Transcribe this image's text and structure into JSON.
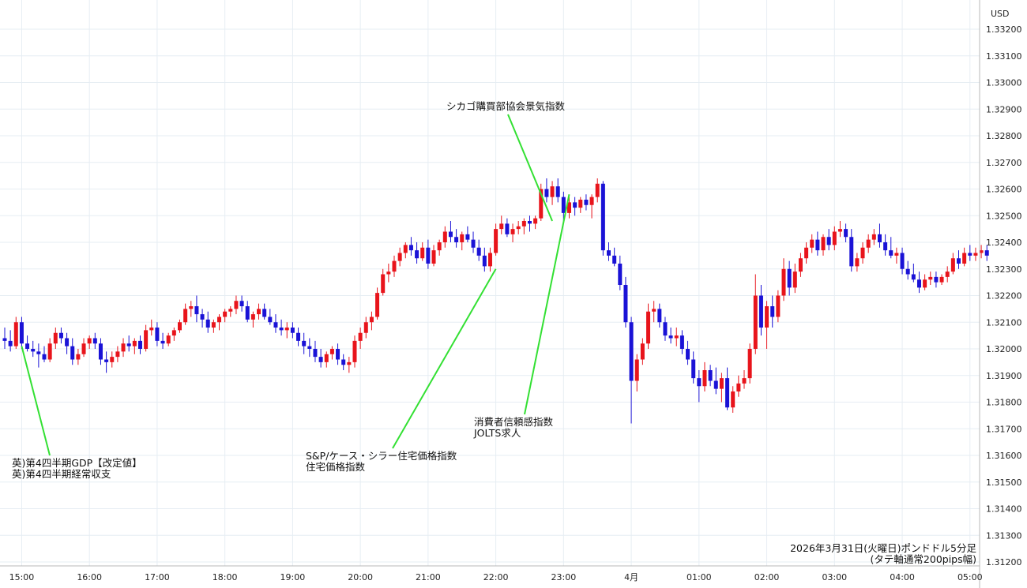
{
  "chart_data": {
    "type": "candlestick",
    "currency_label": "USD",
    "caption": [
      "2026年3月31日(火曜日)ポンドドル5分足",
      "(タテ軸通常200pips幅)"
    ],
    "ylim": [
      1.3119,
      1.3326
    ],
    "y_ticks": [
      "1.31200",
      "1.31300",
      "1.31400",
      "1.31500",
      "1.31600",
      "1.31700",
      "1.31800",
      "1.31900",
      "1.32000",
      "1.32100",
      "1.32200",
      "1.32300",
      "1.32400",
      "1.32500",
      "1.32600",
      "1.32700",
      "1.32800",
      "1.32900",
      "1.33000",
      "1.33100",
      "1.33200"
    ],
    "x_ticks": [
      {
        "label": "15:00",
        "i": 3
      },
      {
        "label": "16:00",
        "i": 15
      },
      {
        "label": "17:00",
        "i": 27
      },
      {
        "label": "18:00",
        "i": 39
      },
      {
        "label": "19:00",
        "i": 51
      },
      {
        "label": "20:00",
        "i": 63
      },
      {
        "label": "21:00",
        "i": 75
      },
      {
        "label": "22:00",
        "i": 87
      },
      {
        "label": "23:00",
        "i": 99
      },
      {
        "label": "4月",
        "i": 111
      },
      {
        "label": "01:00",
        "i": 123
      },
      {
        "label": "02:00",
        "i": 135
      },
      {
        "label": "03:00",
        "i": 147
      },
      {
        "label": "04:00",
        "i": 159
      },
      {
        "label": "05:00",
        "i": 171
      }
    ],
    "up_color": "#e8141b",
    "down_color": "#1a12d6",
    "annotation_color": "#33e033",
    "annotations": [
      {
        "lines": [
          "英)第4四半期GDP【改定値】",
          "英)第4四半期経常収支"
        ],
        "bar": 3,
        "price": 1.3201
      },
      {
        "lines": [
          "S&P/ケース・シラー住宅価格指数",
          "住宅価格指数"
        ],
        "bar": 87,
        "price": 1.323
      },
      {
        "lines": [
          "消費者信頼感指数",
          "JOLTS求人"
        ],
        "bar": 100,
        "price": 1.3258
      },
      {
        "lines": [
          "シカゴ購買部協会景気指数"
        ],
        "bar": 97,
        "price": 1.3248
      }
    ],
    "candles": [
      [
        1.3204,
        1.3208,
        1.32,
        1.3203
      ],
      [
        1.3203,
        1.3207,
        1.3199,
        1.3201
      ],
      [
        1.3201,
        1.3212,
        1.32,
        1.321
      ],
      [
        1.321,
        1.3212,
        1.32,
        1.3202
      ],
      [
        1.3202,
        1.3205,
        1.3199,
        1.32
      ],
      [
        1.32,
        1.3203,
        1.3197,
        1.3199
      ],
      [
        1.3199,
        1.3202,
        1.3193,
        1.3198
      ],
      [
        1.3198,
        1.3201,
        1.3195,
        1.3196
      ],
      [
        1.3196,
        1.3204,
        1.3195,
        1.3202
      ],
      [
        1.3202,
        1.3208,
        1.32,
        1.3206
      ],
      [
        1.3206,
        1.3208,
        1.3202,
        1.3204
      ],
      [
        1.3204,
        1.3206,
        1.3198,
        1.3201
      ],
      [
        1.3201,
        1.3204,
        1.3194,
        1.3196
      ],
      [
        1.3196,
        1.32,
        1.3194,
        1.3198
      ],
      [
        1.3198,
        1.3204,
        1.3197,
        1.3202
      ],
      [
        1.3202,
        1.3205,
        1.32,
        1.3204
      ],
      [
        1.3204,
        1.3206,
        1.32,
        1.3202
      ],
      [
        1.3202,
        1.3204,
        1.3194,
        1.3196
      ],
      [
        1.3196,
        1.3199,
        1.3191,
        1.3195
      ],
      [
        1.3195,
        1.3199,
        1.3193,
        1.3197
      ],
      [
        1.3197,
        1.3201,
        1.3195,
        1.3199
      ],
      [
        1.3199,
        1.3204,
        1.3197,
        1.3202
      ],
      [
        1.3202,
        1.3205,
        1.3199,
        1.3201
      ],
      [
        1.3201,
        1.3204,
        1.3198,
        1.3203
      ],
      [
        1.3203,
        1.3205,
        1.3198,
        1.32
      ],
      [
        1.32,
        1.3209,
        1.3199,
        1.3207
      ],
      [
        1.3207,
        1.3211,
        1.3205,
        1.3208
      ],
      [
        1.3208,
        1.321,
        1.3201,
        1.3203
      ],
      [
        1.3203,
        1.3206,
        1.32,
        1.3202
      ],
      [
        1.3202,
        1.3206,
        1.3201,
        1.3205
      ],
      [
        1.3205,
        1.3208,
        1.3203,
        1.3207
      ],
      [
        1.3207,
        1.3211,
        1.3206,
        1.321
      ],
      [
        1.321,
        1.3217,
        1.3209,
        1.3215
      ],
      [
        1.3215,
        1.3218,
        1.3212,
        1.3216
      ],
      [
        1.3216,
        1.322,
        1.321,
        1.3213
      ],
      [
        1.3213,
        1.3215,
        1.3208,
        1.3211
      ],
      [
        1.3211,
        1.3214,
        1.3206,
        1.3208
      ],
      [
        1.3208,
        1.3211,
        1.3206,
        1.321
      ],
      [
        1.321,
        1.3213,
        1.3207,
        1.3212
      ],
      [
        1.3212,
        1.3215,
        1.321,
        1.3214
      ],
      [
        1.3214,
        1.3216,
        1.3212,
        1.3215
      ],
      [
        1.3215,
        1.322,
        1.3213,
        1.3218
      ],
      [
        1.3218,
        1.322,
        1.3214,
        1.3216
      ],
      [
        1.3216,
        1.3218,
        1.321,
        1.3211
      ],
      [
        1.3211,
        1.3214,
        1.3208,
        1.3213
      ],
      [
        1.3213,
        1.3217,
        1.3211,
        1.3215
      ],
      [
        1.3215,
        1.3217,
        1.3211,
        1.3212
      ],
      [
        1.3212,
        1.3215,
        1.3209,
        1.321
      ],
      [
        1.321,
        1.3213,
        1.3206,
        1.3208
      ],
      [
        1.3208,
        1.3211,
        1.3205,
        1.3207
      ],
      [
        1.3207,
        1.321,
        1.3204,
        1.3208
      ],
      [
        1.3208,
        1.321,
        1.3204,
        1.3206
      ],
      [
        1.3206,
        1.3208,
        1.3201,
        1.3203
      ],
      [
        1.3203,
        1.3206,
        1.3198,
        1.3201
      ],
      [
        1.3201,
        1.3204,
        1.3197,
        1.32
      ],
      [
        1.32,
        1.3203,
        1.3195,
        1.3197
      ],
      [
        1.3197,
        1.32,
        1.3193,
        1.3195
      ],
      [
        1.3195,
        1.3199,
        1.3193,
        1.3198
      ],
      [
        1.3198,
        1.3201,
        1.3196,
        1.32
      ],
      [
        1.32,
        1.3202,
        1.3194,
        1.3196
      ],
      [
        1.3196,
        1.3198,
        1.3192,
        1.3194
      ],
      [
        1.3194,
        1.3197,
        1.3191,
        1.3195
      ],
      [
        1.3195,
        1.3205,
        1.3193,
        1.3203
      ],
      [
        1.3203,
        1.3208,
        1.32,
        1.3206
      ],
      [
        1.3206,
        1.3212,
        1.3204,
        1.321
      ],
      [
        1.321,
        1.3214,
        1.3207,
        1.3212
      ],
      [
        1.3212,
        1.3223,
        1.3211,
        1.3221
      ],
      [
        1.3221,
        1.323,
        1.322,
        1.3228
      ],
      [
        1.3228,
        1.3232,
        1.3225,
        1.3229
      ],
      [
        1.3229,
        1.3235,
        1.3227,
        1.3233
      ],
      [
        1.3233,
        1.3238,
        1.3231,
        1.3236
      ],
      [
        1.3236,
        1.324,
        1.3234,
        1.3239
      ],
      [
        1.3239,
        1.3242,
        1.3235,
        1.3237
      ],
      [
        1.3237,
        1.324,
        1.3232,
        1.3234
      ],
      [
        1.3234,
        1.324,
        1.3233,
        1.3238
      ],
      [
        1.3238,
        1.3241,
        1.323,
        1.3232
      ],
      [
        1.3232,
        1.3239,
        1.3231,
        1.3237
      ],
      [
        1.3237,
        1.3241,
        1.3235,
        1.324
      ],
      [
        1.324,
        1.3246,
        1.3238,
        1.3244
      ],
      [
        1.3244,
        1.3248,
        1.324,
        1.3242
      ],
      [
        1.3242,
        1.3245,
        1.3238,
        1.324
      ],
      [
        1.324,
        1.3244,
        1.3237,
        1.3243
      ],
      [
        1.3243,
        1.3246,
        1.324,
        1.3241
      ],
      [
        1.3241,
        1.3244,
        1.3236,
        1.3238
      ],
      [
        1.3238,
        1.3241,
        1.3233,
        1.3235
      ],
      [
        1.3235,
        1.3238,
        1.3229,
        1.3231
      ],
      [
        1.3231,
        1.3238,
        1.3229,
        1.3236
      ],
      [
        1.3236,
        1.3247,
        1.3235,
        1.3245
      ],
      [
        1.3245,
        1.325,
        1.3243,
        1.3247
      ],
      [
        1.3247,
        1.3249,
        1.3242,
        1.3243
      ],
      [
        1.3243,
        1.3247,
        1.324,
        1.3245
      ],
      [
        1.3245,
        1.3248,
        1.3243,
        1.3246
      ],
      [
        1.3246,
        1.3249,
        1.3243,
        1.3248
      ],
      [
        1.3248,
        1.325,
        1.3244,
        1.3247
      ],
      [
        1.3247,
        1.325,
        1.3245,
        1.3249
      ],
      [
        1.3249,
        1.3262,
        1.3248,
        1.326
      ],
      [
        1.326,
        1.3264,
        1.3255,
        1.3257
      ],
      [
        1.3257,
        1.3263,
        1.3254,
        1.3261
      ],
      [
        1.3261,
        1.3264,
        1.3255,
        1.3257
      ],
      [
        1.3257,
        1.3259,
        1.3248,
        1.3251
      ],
      [
        1.3251,
        1.3257,
        1.3249,
        1.3255
      ],
      [
        1.3255,
        1.3257,
        1.325,
        1.3253
      ],
      [
        1.3253,
        1.3257,
        1.3251,
        1.3256
      ],
      [
        1.3256,
        1.3258,
        1.3252,
        1.3254
      ],
      [
        1.3254,
        1.3258,
        1.3249,
        1.3257
      ],
      [
        1.3257,
        1.3264,
        1.3255,
        1.3262
      ],
      [
        1.3262,
        1.3263,
        1.3235,
        1.3237
      ],
      [
        1.3237,
        1.324,
        1.3233,
        1.3235
      ],
      [
        1.3235,
        1.3238,
        1.3231,
        1.3232
      ],
      [
        1.3232,
        1.3235,
        1.3222,
        1.3224
      ],
      [
        1.3224,
        1.3227,
        1.3208,
        1.321
      ],
      [
        1.321,
        1.3212,
        1.3172,
        1.3188
      ],
      [
        1.3188,
        1.3198,
        1.3184,
        1.3196
      ],
      [
        1.3196,
        1.3204,
        1.3194,
        1.3202
      ],
      [
        1.3202,
        1.3217,
        1.32,
        1.3214
      ],
      [
        1.3214,
        1.3218,
        1.321,
        1.3215
      ],
      [
        1.3215,
        1.3217,
        1.3208,
        1.321
      ],
      [
        1.321,
        1.3212,
        1.3203,
        1.3205
      ],
      [
        1.3205,
        1.3208,
        1.3202,
        1.3204
      ],
      [
        1.3204,
        1.3208,
        1.3201,
        1.3205
      ],
      [
        1.3205,
        1.3207,
        1.3198,
        1.32
      ],
      [
        1.32,
        1.3203,
        1.3194,
        1.3196
      ],
      [
        1.3196,
        1.3199,
        1.3187,
        1.3189
      ],
      [
        1.3189,
        1.3192,
        1.318,
        1.3186
      ],
      [
        1.3186,
        1.3195,
        1.3184,
        1.3192
      ],
      [
        1.3192,
        1.3194,
        1.3186,
        1.3188
      ],
      [
        1.3188,
        1.3193,
        1.3183,
        1.3185
      ],
      [
        1.3185,
        1.3191,
        1.318,
        1.3189
      ],
      [
        1.3189,
        1.3193,
        1.3177,
        1.3178
      ],
      [
        1.3178,
        1.3186,
        1.3176,
        1.3184
      ],
      [
        1.3184,
        1.319,
        1.3182,
        1.3187
      ],
      [
        1.3187,
        1.3192,
        1.3185,
        1.3189
      ],
      [
        1.3189,
        1.3202,
        1.3187,
        1.32
      ],
      [
        1.32,
        1.3228,
        1.3198,
        1.322
      ],
      [
        1.322,
        1.3224,
        1.3205,
        1.3208
      ],
      [
        1.3208,
        1.3218,
        1.32,
        1.3216
      ],
      [
        1.3216,
        1.322,
        1.3208,
        1.3212
      ],
      [
        1.3212,
        1.3222,
        1.321,
        1.322
      ],
      [
        1.322,
        1.3234,
        1.3218,
        1.323
      ],
      [
        1.323,
        1.3233,
        1.322,
        1.3223
      ],
      [
        1.3223,
        1.3232,
        1.3221,
        1.3229
      ],
      [
        1.3229,
        1.3236,
        1.3227,
        1.3234
      ],
      [
        1.3234,
        1.324,
        1.3232,
        1.3238
      ],
      [
        1.3238,
        1.3243,
        1.3236,
        1.3241
      ],
      [
        1.3241,
        1.3244,
        1.3235,
        1.3237
      ],
      [
        1.3237,
        1.3243,
        1.3235,
        1.3242
      ],
      [
        1.3242,
        1.3245,
        1.3237,
        1.3239
      ],
      [
        1.3239,
        1.3246,
        1.3237,
        1.3244
      ],
      [
        1.3244,
        1.3248,
        1.3242,
        1.3245
      ],
      [
        1.3245,
        1.3247,
        1.324,
        1.3242
      ],
      [
        1.3242,
        1.3245,
        1.3229,
        1.3231
      ],
      [
        1.3231,
        1.3236,
        1.3229,
        1.3234
      ],
      [
        1.3234,
        1.324,
        1.3232,
        1.3238
      ],
      [
        1.3238,
        1.3243,
        1.3236,
        1.3241
      ],
      [
        1.3241,
        1.3245,
        1.3239,
        1.3243
      ],
      [
        1.3243,
        1.3247,
        1.3238,
        1.324
      ],
      [
        1.324,
        1.3243,
        1.3235,
        1.3237
      ],
      [
        1.3237,
        1.3242,
        1.3234,
        1.3235
      ],
      [
        1.3235,
        1.3238,
        1.3232,
        1.3236
      ],
      [
        1.3236,
        1.3238,
        1.3228,
        1.323
      ],
      [
        1.323,
        1.3233,
        1.3226,
        1.3228
      ],
      [
        1.3228,
        1.3232,
        1.3225,
        1.3226
      ],
      [
        1.3226,
        1.3229,
        1.3221,
        1.3223
      ],
      [
        1.3223,
        1.3228,
        1.3222,
        1.3226
      ],
      [
        1.3226,
        1.3229,
        1.3224,
        1.3227
      ],
      [
        1.3227,
        1.3229,
        1.3223,
        1.3225
      ],
      [
        1.3225,
        1.3228,
        1.3224,
        1.3227
      ],
      [
        1.3227,
        1.3231,
        1.3225,
        1.3229
      ],
      [
        1.3229,
        1.3236,
        1.3228,
        1.3234
      ],
      [
        1.3234,
        1.3237,
        1.323,
        1.3232
      ],
      [
        1.3232,
        1.3238,
        1.3231,
        1.3236
      ],
      [
        1.3236,
        1.3239,
        1.3233,
        1.3235
      ],
      [
        1.3235,
        1.3238,
        1.3233,
        1.3236
      ],
      [
        1.3236,
        1.3239,
        1.3234,
        1.3237
      ],
      [
        1.3237,
        1.3239,
        1.3233,
        1.3235
      ]
    ]
  }
}
